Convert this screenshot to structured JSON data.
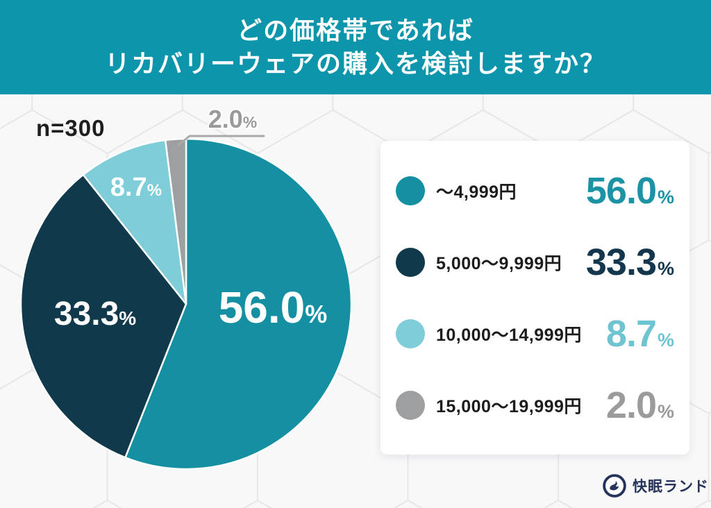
{
  "header": {
    "title_line1": "どの価格帯であれば",
    "title_line2": "リカバリーウェアの購入を検討しますか？",
    "banner_color": "#0d95ab"
  },
  "chart_data": {
    "type": "pie",
    "title": "どの価格帯であれば リカバリーウェアの購入を検討しますか？",
    "sample_label": "n=300",
    "percent_sign": "%",
    "start_angle_deg": -90,
    "direction": "clockwise",
    "legend_position": "right",
    "slices": [
      {
        "range_label": "〜4,999円",
        "value": 56.0,
        "display": "56.0",
        "color": "#1590a3",
        "legend_value_color": "#1b93a5"
      },
      {
        "range_label": "5,000〜9,999円",
        "value": 33.3,
        "display": "33.3",
        "color": "#103a4b",
        "legend_value_color": "#14374e"
      },
      {
        "range_label": "10,000〜14,999円",
        "value": 8.7,
        "display": "8.7",
        "color": "#7ecdd8",
        "legend_value_color": "#6fc4d1"
      },
      {
        "range_label": "15,000〜19,999円",
        "value": 2.0,
        "display": "2.0",
        "color": "#9e9fa0",
        "legend_value_color": "#9b9b9b"
      }
    ],
    "outside_label_color": "#9a9a9a",
    "leader_line_color": "#a9a9a9"
  },
  "footer": {
    "brand_name": "快眠ランド",
    "brand_color": "#26335a"
  }
}
